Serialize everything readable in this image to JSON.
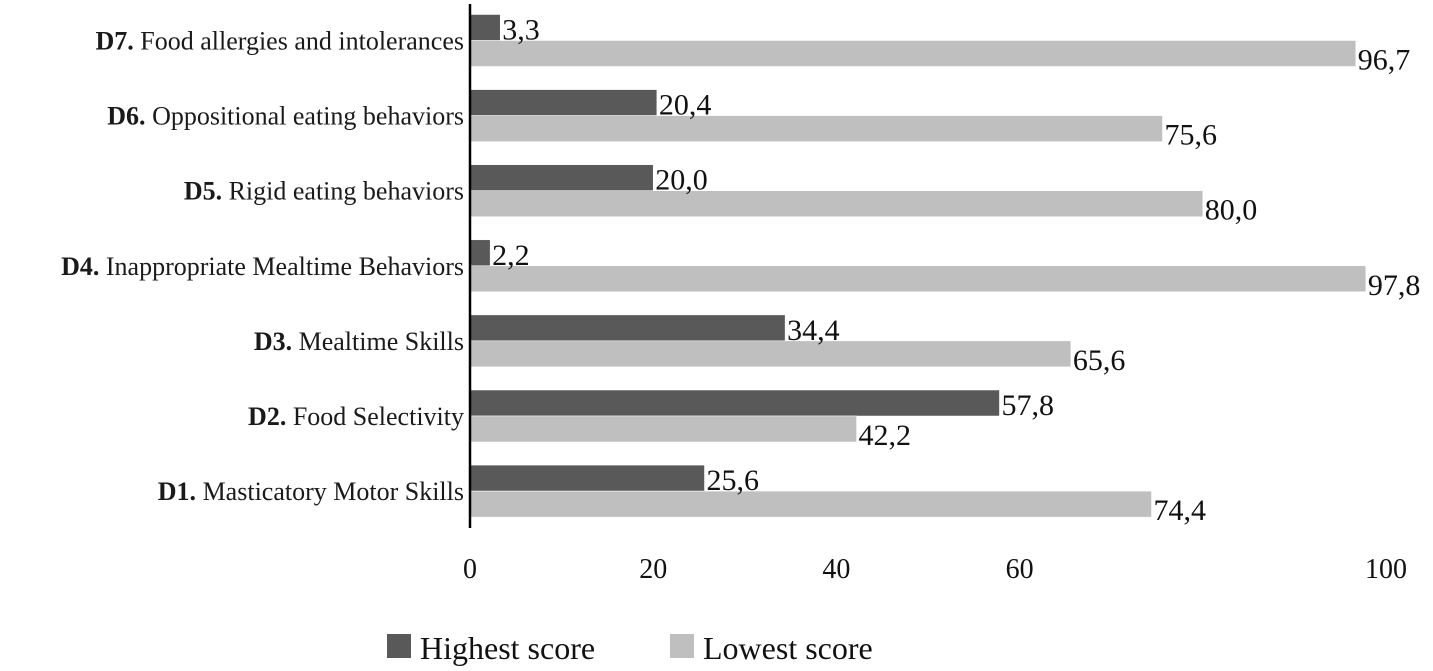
{
  "chart_data": {
    "type": "bar",
    "orientation": "horizontal",
    "categories": [
      {
        "code": "D7.",
        "name": "Food allergies and intolerances"
      },
      {
        "code": "D6.",
        "name": "Oppositional eating behaviors"
      },
      {
        "code": "D5.",
        "name": "Rigid eating behaviors"
      },
      {
        "code": "D4.",
        "name": "Inappropriate Mealtime Behaviors"
      },
      {
        "code": "D3.",
        "name": "Mealtime Skills"
      },
      {
        "code": "D2.",
        "name": "Food Selectivity"
      },
      {
        "code": "D1.",
        "name": "Masticatory Motor Skills"
      }
    ],
    "series": [
      {
        "name": "Highest score",
        "color": "#595959",
        "values": [
          3.3,
          20.4,
          20.0,
          2.2,
          34.4,
          57.8,
          25.6
        ],
        "labels": [
          "3,3",
          "20,4",
          "20,0",
          "2,2",
          "34,4",
          "57,8",
          "25,6"
        ]
      },
      {
        "name": "Lowest score",
        "color": "#bfbfbf",
        "values": [
          96.7,
          75.6,
          80.0,
          97.8,
          65.6,
          42.2,
          74.4
        ],
        "labels": [
          "96,7",
          "75,6",
          "80,0",
          "97,8",
          "65,6",
          "42,2",
          "74,4"
        ]
      }
    ],
    "x_ticks": [
      0,
      20,
      40,
      60,
      100
    ],
    "x_tick_labels": [
      "0",
      "20",
      "40",
      "60",
      "100"
    ],
    "xlim": [
      0,
      100
    ],
    "grid": false,
    "legend_position": "bottom"
  }
}
